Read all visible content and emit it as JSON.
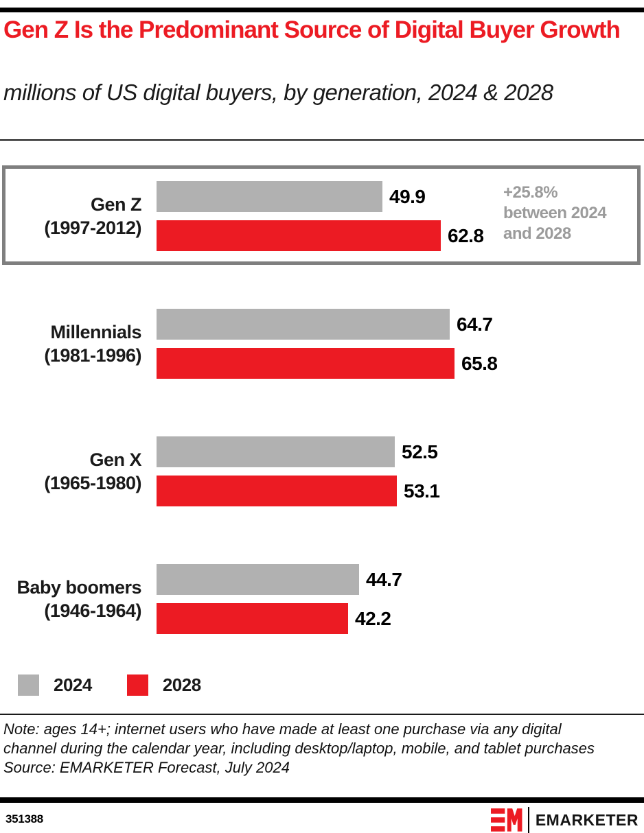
{
  "page": {
    "title": "Gen Z Is the Predominant Source of Digital Buyer Growth",
    "subtitle": "millions of US digital buyers, by generation, 2024 & 2028",
    "note": "Note: ages 14+; internet users who have made at least one purchase via any digital channel during the calendar year, including desktop/laptop, mobile, and tablet purchases",
    "source": "Source: EMARKETER Forecast, July 2024",
    "chart_id": "351388",
    "brand": "EMARKETER"
  },
  "colors": {
    "accent_red": "#ec1b23",
    "bar_gray": "#b1b1b1",
    "annotation_gray": "#9b9b9b",
    "highlight_border_gray": "#7f7f7f",
    "text_black": "#1a1a1a"
  },
  "chart_data": {
    "type": "bar",
    "orientation": "horizontal",
    "title": "Gen Z Is the Predominant Source of Digital Buyer Growth",
    "subtitle": "millions of US digital buyers, by generation, 2024 & 2028",
    "unit": "millions of US digital buyers",
    "categories": [
      "Gen Z (1997-2012)",
      "Millennials (1981-1996)",
      "Gen X (1965-1980)",
      "Baby boomers (1946-1964)"
    ],
    "series": [
      {
        "name": "2024",
        "color": "#b1b1b1",
        "values": [
          49.9,
          64.7,
          52.5,
          44.7
        ]
      },
      {
        "name": "2028",
        "color": "#ec1b23",
        "values": [
          62.8,
          65.8,
          53.1,
          42.2
        ]
      }
    ],
    "annotation": "+25.8%\nbetween 2024\nand 2028",
    "annotation_target": "Gen Z (1997-2012)",
    "highlighted_category": "Gen Z (1997-2012)",
    "value_labels": true,
    "legend_position": "bottom",
    "xlim": [
      0,
      70
    ],
    "grid": false
  },
  "groups": [
    {
      "name": "Gen Z",
      "years": "(1997-2012)",
      "v2024": "49.9",
      "v2028": "62.8"
    },
    {
      "name": "Millennials",
      "years": "(1981-1996)",
      "v2024": "64.7",
      "v2028": "65.8"
    },
    {
      "name": "Gen X",
      "years": "(1965-1980)",
      "v2024": "52.5",
      "v2028": "53.1"
    },
    {
      "name": "Baby boomers",
      "years": "(1946-1964)",
      "v2024": "44.7",
      "v2028": "42.2"
    }
  ],
  "legend": {
    "items": [
      {
        "label": "2024"
      },
      {
        "label": "2028"
      }
    ]
  }
}
